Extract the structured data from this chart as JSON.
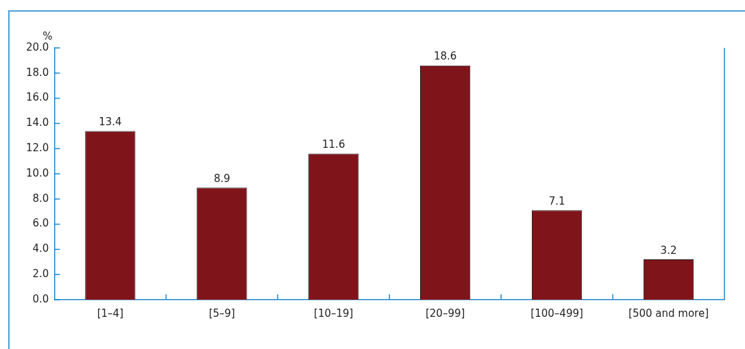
{
  "chart_data": {
    "type": "bar",
    "ylabel": "%",
    "categories": [
      "[1–4]",
      "[5–9]",
      "[10–19]",
      "[20–99]",
      "[100–499]",
      "[500 and more]"
    ],
    "values": [
      13.4,
      8.9,
      11.6,
      18.6,
      7.1,
      3.2
    ],
    "color": "#80141b",
    "ylim": [
      0,
      20
    ],
    "yticks": [
      {
        "value": 0,
        "label": "0.0"
      },
      {
        "value": 2,
        "label": "2.0"
      },
      {
        "value": 4,
        "label": "4.0"
      },
      {
        "value": 6,
        "label": "6.0"
      },
      {
        "value": 8,
        "label": "8.0"
      },
      {
        "value": 10,
        "label": "10.0"
      },
      {
        "value": 12,
        "label": "12.0"
      },
      {
        "value": 14,
        "label": "14.0"
      },
      {
        "value": 16,
        "label": "16.0"
      },
      {
        "value": 18,
        "label": "18.0"
      },
      {
        "value": 20,
        "label": "20.0"
      }
    ],
    "grid": false,
    "legend": false,
    "data_labels": true
  }
}
